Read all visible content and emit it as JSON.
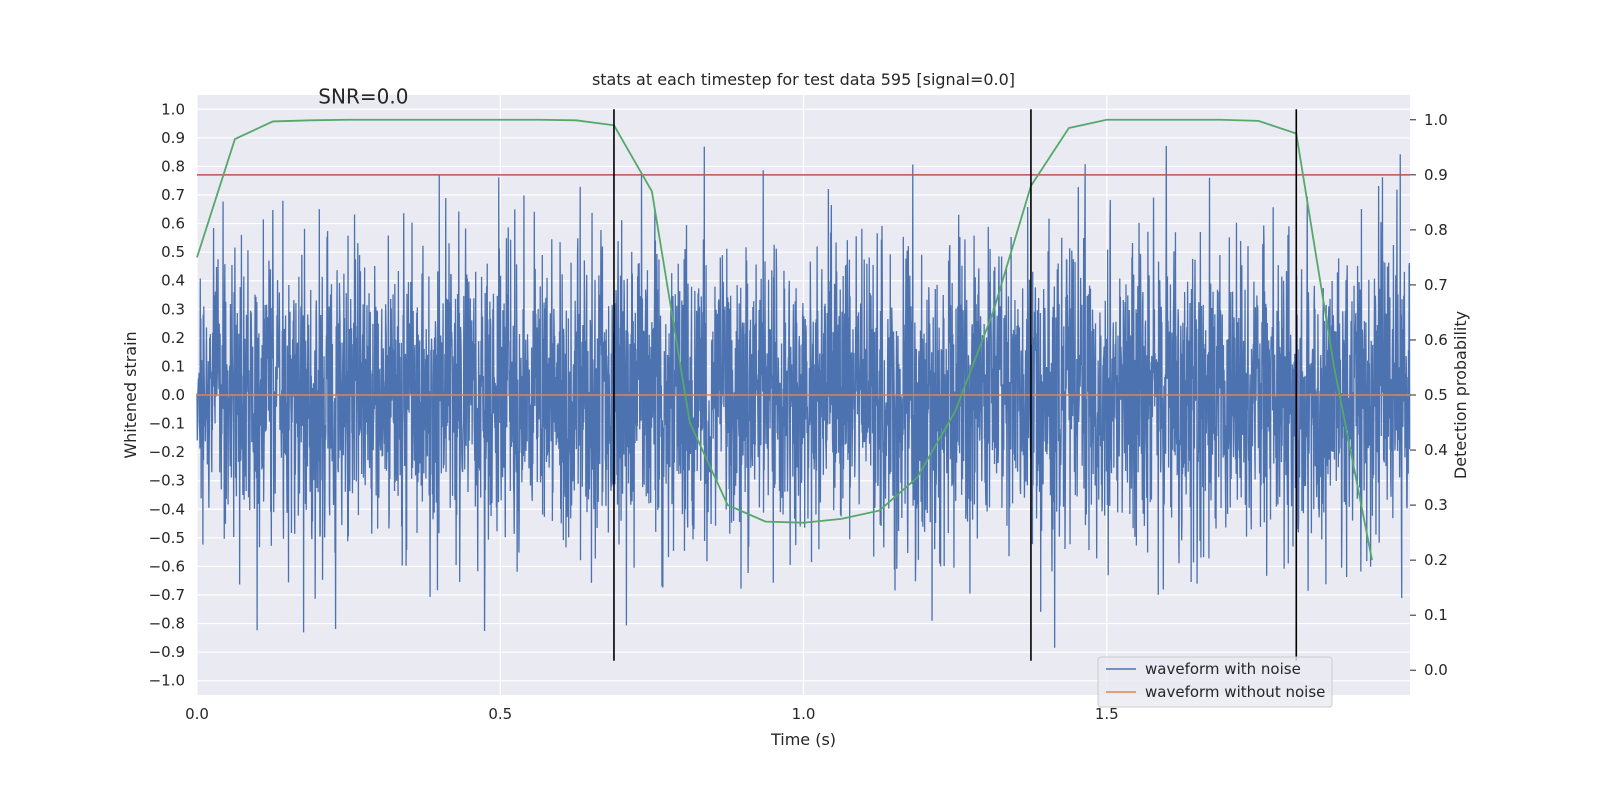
{
  "chart_data": {
    "type": "line",
    "title": "stats at each timestep for test data 595 [signal=0.0]",
    "xlabel": "Time (s)",
    "ylabel": "Whitened strain",
    "y2label": "Detection probability",
    "xlim": [
      0.0,
      2.0
    ],
    "ylim": [
      -1.05,
      1.05
    ],
    "y2lim": [
      -0.045,
      1.045
    ],
    "xticks": [
      0.0,
      0.5,
      1.0,
      1.5
    ],
    "xtick_labels": [
      "0.0",
      "0.5",
      "1.0",
      "1.5"
    ],
    "yticks": [
      -1.0,
      -0.9,
      -0.8,
      -0.7,
      -0.6,
      -0.5,
      -0.4,
      -0.3,
      -0.2,
      -0.1,
      0.0,
      0.1,
      0.2,
      0.3,
      0.4,
      0.5,
      0.6,
      0.7,
      0.8,
      0.9,
      1.0
    ],
    "ytick_labels": [
      "−1.0",
      "−0.9",
      "−0.8",
      "−0.7",
      "−0.6",
      "−0.5",
      "−0.4",
      "−0.3",
      "−0.2",
      "−0.1",
      "0.0",
      "0.1",
      "0.2",
      "0.3",
      "0.4",
      "0.5",
      "0.6",
      "0.7",
      "0.8",
      "0.9",
      "1.0"
    ],
    "y2ticks": [
      0.0,
      0.1,
      0.2,
      0.3,
      0.4,
      0.5,
      0.6,
      0.7,
      0.8,
      0.9,
      1.0
    ],
    "y2tick_labels": [
      "0.0",
      "0.1",
      "0.2",
      "0.3",
      "0.4",
      "0.5",
      "0.6",
      "0.7",
      "0.8",
      "0.9",
      "1.0"
    ],
    "annotation": "SNR=0.0",
    "annotation_at": {
      "x": 0.2,
      "y": 1.02
    },
    "noisy_waveform": {
      "name": "waveform with noise",
      "color": "#4c72b0",
      "sample_rate_hz": 2048,
      "t_end": 2.0,
      "amplitude_sigma": 0.26,
      "clip": [
        -0.9,
        1.0
      ],
      "seed": 595
    },
    "clean_waveform": {
      "name": "waveform without noise",
      "color": "#dd8452",
      "x": [
        0.0,
        2.0
      ],
      "y": [
        0.0,
        0.0
      ]
    },
    "threshold": {
      "color": "#c44e52",
      "axis": "y2",
      "value": 0.9
    },
    "detection_probability": {
      "color": "#55a868",
      "axis": "y2",
      "x": [
        0.0,
        0.0625,
        0.125,
        0.1875,
        0.25,
        0.3125,
        0.375,
        0.4375,
        0.5,
        0.5625,
        0.625,
        0.6875,
        0.75,
        0.8125,
        0.875,
        0.9375,
        1.0,
        1.0625,
        1.125,
        1.1875,
        1.25,
        1.3125,
        1.375,
        1.4375,
        1.5,
        1.5625,
        1.625,
        1.6875,
        1.75,
        1.8125,
        1.875,
        1.9375
      ],
      "y": [
        0.75,
        0.965,
        0.997,
        0.999,
        1.0,
        1.0,
        1.0,
        1.0,
        1.0,
        1.0,
        0.999,
        0.99,
        0.87,
        0.45,
        0.3,
        0.27,
        0.268,
        0.275,
        0.29,
        0.35,
        0.47,
        0.65,
        0.88,
        0.985,
        1.0,
        1.0,
        1.0,
        1.0,
        0.998,
        0.975,
        0.55,
        0.2
      ]
    },
    "event_markers": {
      "color": "#000000",
      "x": [
        0.6875,
        1.375,
        1.8125
      ],
      "y_range": [
        -0.93,
        1.0
      ]
    },
    "legend": {
      "placement": "lower-right",
      "entries": [
        {
          "label": "waveform with noise",
          "color": "#4c72b0"
        },
        {
          "label": "waveform without noise",
          "color": "#dd8452"
        }
      ]
    },
    "grid": true,
    "background": "#eaeaf2"
  }
}
